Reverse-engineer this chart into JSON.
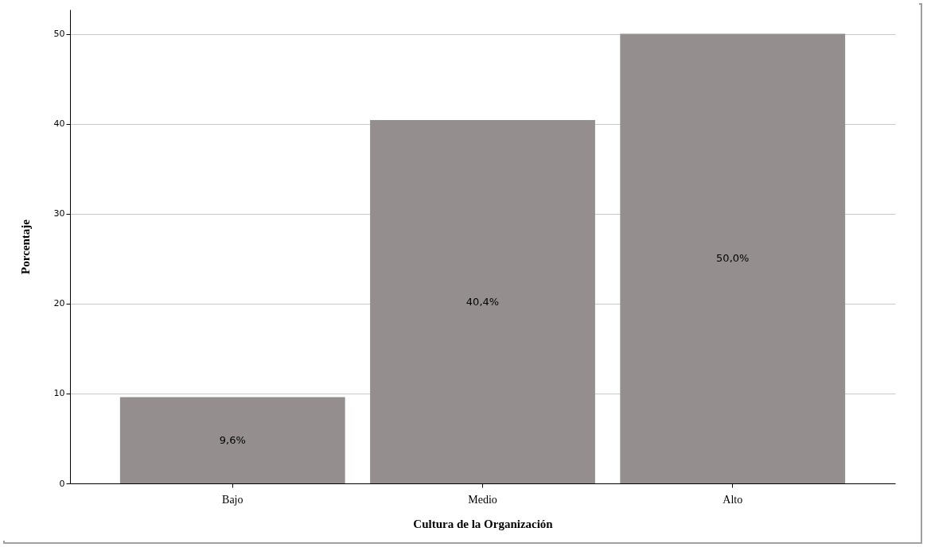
{
  "chart_data": {
    "type": "bar",
    "xlabel": "Cultura de la Organización",
    "ylabel": "Porcentaje",
    "categories": [
      "Bajo",
      "Medio",
      "Alto"
    ],
    "values": [
      9.6,
      40.4,
      50.0
    ],
    "value_labels": [
      "9,6%",
      "40,4%",
      "50,0%"
    ],
    "color": "#948f8e",
    "ylim": [
      0,
      52.7
    ],
    "yticks": [
      0,
      10,
      20,
      30,
      40,
      50
    ],
    "grid": "y"
  }
}
